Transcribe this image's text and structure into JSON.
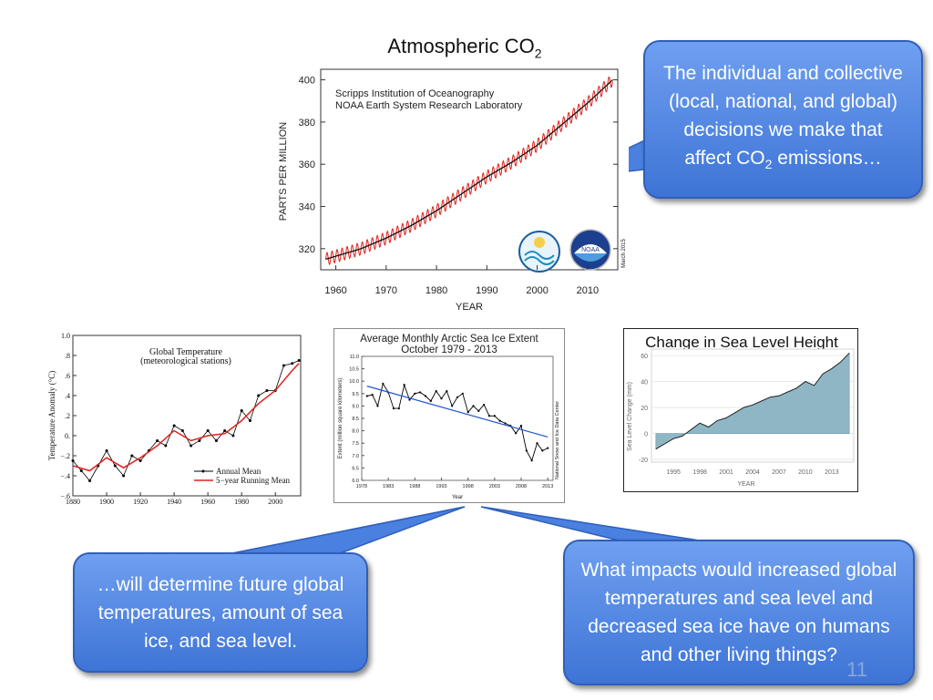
{
  "slide": {
    "title_main": "Atmospheric CO",
    "title_sub": "2",
    "page_number": "11"
  },
  "callouts": {
    "top_right_a": "The individual and collective (local, national, and global) decisions we make that affect CO",
    "top_right_sub": "2",
    "top_right_b": " emissions…",
    "bottom_left": "…will determine future global temperatures, amount of sea ice, and sea level.",
    "bottom_right": "What impacts would increased global temperatures and sea level and decreased sea ice have on humans and other living things?"
  },
  "colors": {
    "bubble": "#4a80e0",
    "co2_line": "#e0201c",
    "trend_line": "#2255cc",
    "sea_fill": "#8fb6c4"
  },
  "chart_data": [
    {
      "id": "co2",
      "type": "line",
      "title": "Scripps Institution of Oceanography",
      "subtitle": "NOAA Earth System Research Laboratory",
      "xlabel": "YEAR",
      "ylabel": "PARTS PER MILLION",
      "annotation": "March 2015",
      "xlim": [
        1957,
        2016
      ],
      "ylim": [
        310,
        405
      ],
      "xticks": [
        1960,
        1970,
        1980,
        1990,
        2000,
        2010
      ],
      "yticks": [
        320,
        340,
        360,
        380,
        400
      ],
      "trend_x": [
        1958,
        1965,
        1970,
        1975,
        1980,
        1985,
        1990,
        1995,
        2000,
        2005,
        2010,
        2015
      ],
      "trend_y": [
        315,
        320,
        325,
        331,
        338,
        346,
        354,
        361,
        369,
        379,
        389,
        400
      ],
      "seasonal_amplitude": 3,
      "legend": "none"
    },
    {
      "id": "global_temp",
      "type": "line",
      "title": "Global Temperature",
      "subtitle": "(meteorological stations)",
      "ylabel": "Temperature Anomaly (°C)",
      "xlim": [
        1880,
        2015
      ],
      "ylim": [
        -0.6,
        1.0
      ],
      "xticks": [
        1880,
        1900,
        1920,
        1940,
        1960,
        1980,
        2000
      ],
      "yticks": [
        -0.6,
        -0.4,
        -0.2,
        0.0,
        0.2,
        0.4,
        0.6,
        0.8,
        1.0
      ],
      "ytick_labels": [
        "−.6",
        "−.4",
        "−.2",
        "0.",
        ".2",
        ".4",
        ".6",
        ".8",
        "1.0"
      ],
      "xtick_labels": [
        "1880",
        "1900",
        "1920",
        "1940",
        "1960",
        "1980",
        "2000"
      ],
      "series": [
        {
          "name": "Annual Mean",
          "x": [
            1880,
            1885,
            1890,
            1895,
            1900,
            1905,
            1910,
            1915,
            1920,
            1925,
            1930,
            1935,
            1940,
            1945,
            1950,
            1955,
            1960,
            1965,
            1970,
            1975,
            1980,
            1985,
            1990,
            1995,
            2000,
            2005,
            2010,
            2014
          ],
          "values": [
            -0.25,
            -0.35,
            -0.45,
            -0.3,
            -0.15,
            -0.3,
            -0.4,
            -0.2,
            -0.25,
            -0.15,
            -0.05,
            -0.1,
            0.1,
            0.05,
            -0.1,
            -0.05,
            0.05,
            -0.05,
            0.05,
            0.0,
            0.25,
            0.15,
            0.4,
            0.45,
            0.45,
            0.7,
            0.72,
            0.75
          ]
        },
        {
          "name": "5−year Running Mean",
          "x": [
            1880,
            1890,
            1900,
            1910,
            1920,
            1930,
            1940,
            1950,
            1960,
            1970,
            1980,
            1990,
            2000,
            2010,
            2014
          ],
          "values": [
            -0.3,
            -0.35,
            -0.22,
            -0.32,
            -0.22,
            -0.1,
            0.05,
            -0.05,
            0.0,
            0.02,
            0.15,
            0.32,
            0.45,
            0.65,
            0.72
          ]
        }
      ],
      "legend": "bottom-right"
    },
    {
      "id": "sea_ice",
      "type": "line",
      "title": "Average Monthly Arctic Sea Ice Extent",
      "subtitle": "October 1979 - 2013",
      "xlabel": "Year",
      "ylabel": "Extent (million square kilometers)",
      "annotation": "National Snow and Ice Data Center",
      "xlim": [
        1978,
        2014
      ],
      "ylim": [
        6.0,
        11.0
      ],
      "xticks": [
        1978,
        1983,
        1988,
        1993,
        1998,
        2003,
        2008,
        2013
      ],
      "yticks": [
        6.0,
        6.5,
        7.0,
        7.5,
        8.0,
        8.5,
        9.0,
        9.5,
        10.0,
        10.5,
        11.0
      ],
      "ytick_labels": [
        "6.0",
        "6.5",
        "7.0",
        "7.5",
        "8.0",
        "8.5",
        "9.0",
        "9.5",
        "10.0",
        "10.5",
        "11.0"
      ],
      "x": [
        1979,
        1980,
        1981,
        1982,
        1983,
        1984,
        1985,
        1986,
        1987,
        1988,
        1989,
        1990,
        1991,
        1992,
        1993,
        1994,
        1995,
        1996,
        1997,
        1998,
        1999,
        2000,
        2001,
        2002,
        2003,
        2004,
        2005,
        2006,
        2007,
        2008,
        2009,
        2010,
        2011,
        2012,
        2013
      ],
      "values": [
        9.4,
        9.45,
        9.0,
        9.9,
        9.55,
        8.9,
        8.9,
        9.85,
        9.25,
        9.5,
        9.55,
        9.4,
        9.2,
        9.6,
        9.3,
        9.6,
        9.0,
        9.35,
        9.5,
        8.75,
        9.0,
        8.8,
        9.05,
        8.6,
        8.6,
        8.4,
        8.3,
        8.2,
        7.9,
        8.2,
        7.2,
        6.8,
        7.5,
        7.2,
        7.3
      ],
      "trend": {
        "x": [
          1979,
          2013
        ],
        "values": [
          9.8,
          7.75
        ]
      },
      "legend": "none"
    },
    {
      "id": "sea_level",
      "type": "area",
      "title": "Change in Sea Level Height",
      "xlabel": "YEAR",
      "ylabel": "Sea Level Change (mm)",
      "xlim": [
        1992.5,
        2015.5
      ],
      "ylim": [
        -22,
        65
      ],
      "xticks": [
        1995,
        1998,
        2001,
        2004,
        2007,
        2010,
        2013
      ],
      "yticks": [
        -20,
        0,
        20,
        40,
        60
      ],
      "x": [
        1993,
        1994,
        1995,
        1996,
        1997,
        1998,
        1999,
        2000,
        2001,
        2002,
        2003,
        2004,
        2005,
        2006,
        2007,
        2008,
        2009,
        2010,
        2011,
        2012,
        2013,
        2014,
        2015
      ],
      "values": [
        -12,
        -8,
        -4,
        -2,
        3,
        8,
        5,
        10,
        12,
        16,
        20,
        22,
        25,
        28,
        29,
        32,
        35,
        40,
        37,
        46,
        50,
        55,
        62
      ],
      "legend": "none"
    }
  ]
}
